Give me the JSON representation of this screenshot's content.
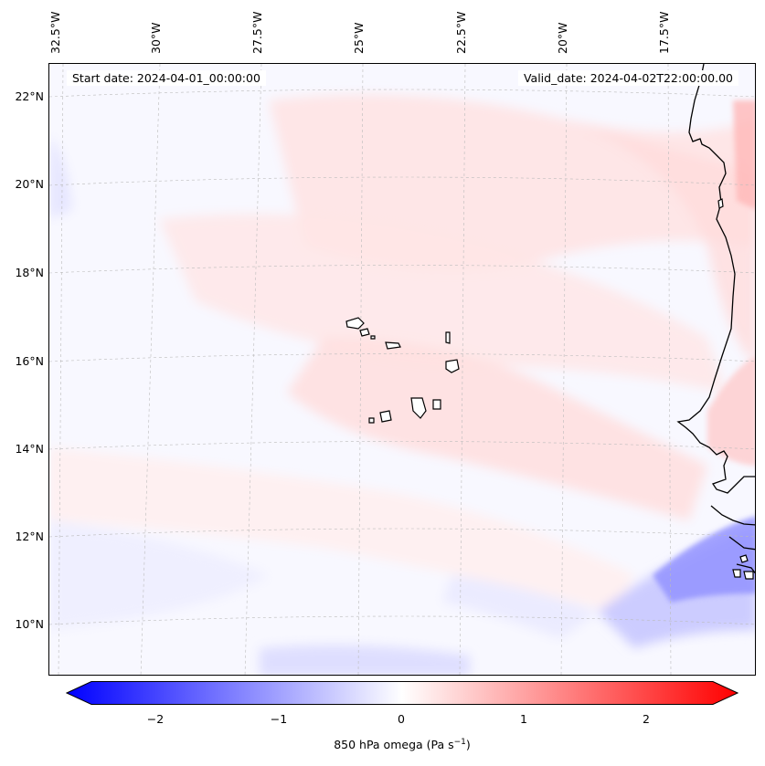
{
  "map": {
    "start_date": "Start date: 2024-04-01_00:00:00",
    "valid_date": "Valid_date: 2024-04-02T22:00:00.00",
    "lon_labels": [
      "32.5°W",
      "30°W",
      "27.5°W",
      "25°W",
      "22.5°W",
      "20°W",
      "17.5°W"
    ],
    "lat_labels": [
      "22°N",
      "20°N",
      "18°N",
      "16°N",
      "14°N",
      "12°N",
      "10°N"
    ]
  },
  "colorbar": {
    "ticks": [
      "−2",
      "−1",
      "0",
      "1",
      "2"
    ],
    "label": "850 hPa omega (Pa s",
    "label_sup": "−1",
    "label_close": ")",
    "min": -2.6,
    "max": 2.6,
    "colors": {
      "low": "#0000ff",
      "mid": "#ffffff",
      "high": "#ff0000"
    }
  }
}
